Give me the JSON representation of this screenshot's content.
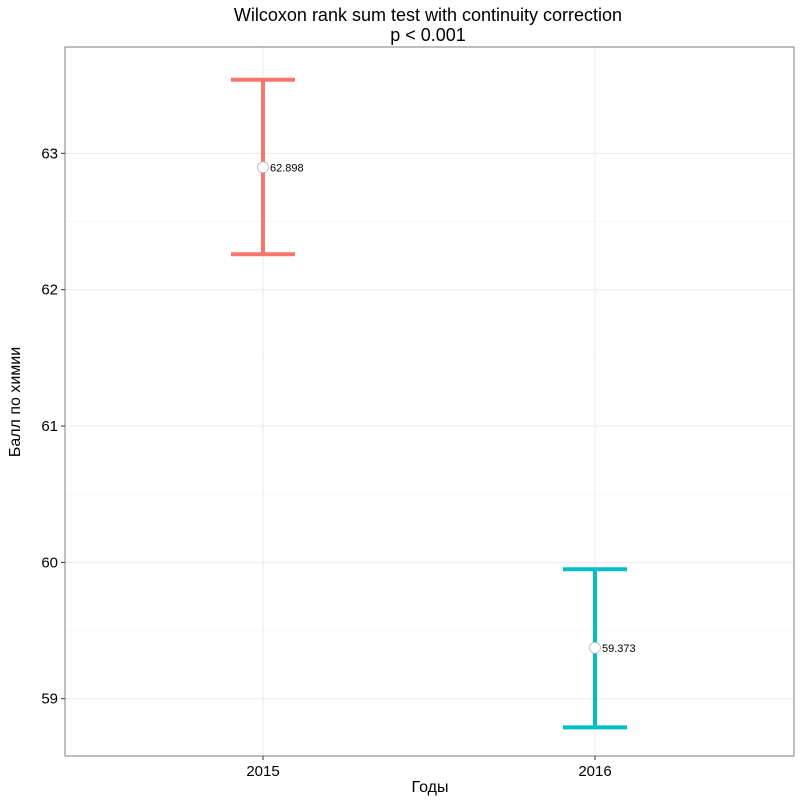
{
  "chart_data": {
    "type": "errorbar",
    "title": "Wilcoxon rank sum test with continuity correction",
    "subtitle": "p < 0.001",
    "xlabel": "Годы",
    "ylabel": "Балл по химии",
    "categories": [
      "2015",
      "2016"
    ],
    "y_ticks": [
      59,
      60,
      61,
      62,
      63
    ],
    "ylim": [
      58.58,
      63.78
    ],
    "grid": true,
    "series": [
      {
        "category": "2015",
        "mean": 62.898,
        "mean_label": "62.898",
        "lower": 62.26,
        "upper": 63.54,
        "color": "#F8766D"
      },
      {
        "category": "2016",
        "mean": 59.373,
        "mean_label": "59.373",
        "lower": 58.79,
        "upper": 59.95,
        "color": "#00BFC4"
      }
    ]
  }
}
